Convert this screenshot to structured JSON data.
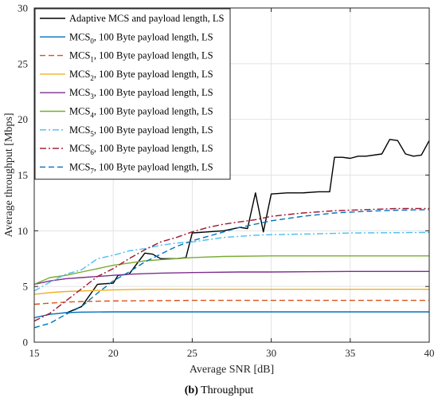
{
  "caption": {
    "letter": "(b)",
    "text": "Throughput"
  },
  "chart_data": {
    "type": "line",
    "xlabel": "Average SNR [dB]",
    "ylabel": "Average throughput [Mbps]",
    "xlim": [
      15,
      40
    ],
    "ylim": [
      0,
      30
    ],
    "xticks": [
      15,
      20,
      25,
      30,
      35,
      40
    ],
    "yticks": [
      0,
      5,
      10,
      15,
      20,
      25,
      30
    ],
    "grid": true,
    "legend_position": "top-left",
    "series": [
      {
        "name": "Adaptive MCS and payload length, LS",
        "base": "Adaptive MCS and payload length, LS",
        "sub": "",
        "rest": "",
        "color": "#000000",
        "dash": "solid",
        "points": [
          [
            17,
            2.6
          ],
          [
            18,
            3.2
          ],
          [
            19,
            5.2
          ],
          [
            20,
            5.3
          ],
          [
            20.3,
            6.0
          ],
          [
            21,
            6.1
          ],
          [
            22,
            8.0
          ],
          [
            22.5,
            7.9
          ],
          [
            23,
            7.5
          ],
          [
            24,
            7.5
          ],
          [
            24.6,
            7.6
          ],
          [
            25,
            9.8
          ],
          [
            26,
            9.9
          ],
          [
            27,
            10.0
          ],
          [
            28,
            10.3
          ],
          [
            28.5,
            10.2
          ],
          [
            29,
            13.4
          ],
          [
            29.5,
            9.9
          ],
          [
            30,
            13.3
          ],
          [
            31,
            13.4
          ],
          [
            32,
            13.4
          ],
          [
            33,
            13.5
          ],
          [
            33.7,
            13.5
          ],
          [
            34,
            16.6
          ],
          [
            34.5,
            16.6
          ],
          [
            35,
            16.5
          ],
          [
            35.5,
            16.7
          ],
          [
            36,
            16.7
          ],
          [
            37,
            16.9
          ],
          [
            37.5,
            18.2
          ],
          [
            38,
            18.1
          ],
          [
            38.5,
            16.9
          ],
          [
            39,
            16.7
          ],
          [
            39.5,
            16.8
          ],
          [
            40,
            18.1
          ]
        ]
      },
      {
        "name": "MCS0, 100 Byte payload length, LS",
        "base": "MCS",
        "sub": "0",
        "rest": ", 100 Byte payload length, LS",
        "color": "#0072BD",
        "dash": "solid",
        "points": [
          [
            15,
            2.2
          ],
          [
            16,
            2.5
          ],
          [
            17,
            2.65
          ],
          [
            18,
            2.7
          ],
          [
            20,
            2.72
          ],
          [
            25,
            2.72
          ],
          [
            30,
            2.72
          ],
          [
            35,
            2.72
          ],
          [
            40,
            2.72
          ]
        ]
      },
      {
        "name": "MCS1, 100 Byte payload length, LS",
        "base": "MCS",
        "sub": "1",
        "rest": ", 100 Byte payload length, LS",
        "color": "#D95319",
        "dash": "dashed",
        "points": [
          [
            15,
            3.4
          ],
          [
            16,
            3.5
          ],
          [
            17,
            3.6
          ],
          [
            18,
            3.65
          ],
          [
            20,
            3.7
          ],
          [
            25,
            3.75
          ],
          [
            30,
            3.75
          ],
          [
            35,
            3.75
          ],
          [
            40,
            3.75
          ]
        ]
      },
      {
        "name": "MCS2, 100 Byte payload length, LS",
        "base": "MCS",
        "sub": "2",
        "rest": ", 100 Byte payload length, LS",
        "color": "#EDB120",
        "dash": "solid",
        "points": [
          [
            15,
            4.3
          ],
          [
            16,
            4.45
          ],
          [
            17,
            4.55
          ],
          [
            18,
            4.6
          ],
          [
            20,
            4.7
          ],
          [
            22,
            4.75
          ],
          [
            25,
            4.75
          ],
          [
            30,
            4.75
          ],
          [
            35,
            4.75
          ],
          [
            40,
            4.75
          ]
        ]
      },
      {
        "name": "MCS3, 100 Byte payload length, LS",
        "base": "MCS",
        "sub": "3",
        "rest": ", 100 Byte payload length, LS",
        "color": "#7E2F8E",
        "dash": "solid",
        "points": [
          [
            15,
            5.2
          ],
          [
            16,
            5.5
          ],
          [
            17,
            5.7
          ],
          [
            18,
            5.8
          ],
          [
            19,
            5.9
          ],
          [
            20,
            6.0
          ],
          [
            21,
            6.1
          ],
          [
            22,
            6.15
          ],
          [
            23,
            6.2
          ],
          [
            25,
            6.25
          ],
          [
            28,
            6.3
          ],
          [
            30,
            6.3
          ],
          [
            35,
            6.35
          ],
          [
            40,
            6.35
          ]
        ]
      },
      {
        "name": "MCS4, 100 Byte payload length, LS",
        "base": "MCS",
        "sub": "4",
        "rest": ", 100 Byte payload length, LS",
        "color": "#77AC30",
        "dash": "solid",
        "points": [
          [
            15,
            5.2
          ],
          [
            16,
            5.8
          ],
          [
            17,
            6.0
          ],
          [
            18,
            6.3
          ],
          [
            19,
            6.6
          ],
          [
            20,
            6.9
          ],
          [
            21,
            7.1
          ],
          [
            22,
            7.3
          ],
          [
            23,
            7.4
          ],
          [
            24,
            7.5
          ],
          [
            25,
            7.6
          ],
          [
            27,
            7.7
          ],
          [
            30,
            7.75
          ],
          [
            35,
            7.75
          ],
          [
            40,
            7.75
          ]
        ]
      },
      {
        "name": "MCS5, 100 Byte payload length, LS",
        "base": "MCS",
        "sub": "5",
        "rest": ", 100 Byte payload length, LS",
        "color": "#4DBEEE",
        "dash": "dashdot",
        "points": [
          [
            15,
            4.6
          ],
          [
            16,
            5.4
          ],
          [
            17,
            6.1
          ],
          [
            18,
            6.5
          ],
          [
            19,
            7.5
          ],
          [
            20,
            7.8
          ],
          [
            21,
            8.2
          ],
          [
            22,
            8.4
          ],
          [
            23,
            8.7
          ],
          [
            24,
            8.9
          ],
          [
            25,
            9.0
          ],
          [
            26,
            9.2
          ],
          [
            27,
            9.4
          ],
          [
            28,
            9.5
          ],
          [
            29,
            9.6
          ],
          [
            30,
            9.65
          ],
          [
            32,
            9.7
          ],
          [
            35,
            9.8
          ],
          [
            40,
            9.85
          ]
        ]
      },
      {
        "name": "MCS6, 100 Byte payload length, LS",
        "base": "MCS",
        "sub": "6",
        "rest": ", 100 Byte payload length, LS",
        "color": "#A2142F",
        "dash": "dashdot",
        "points": [
          [
            15,
            1.9
          ],
          [
            16,
            2.6
          ],
          [
            17,
            3.7
          ],
          [
            18,
            4.8
          ],
          [
            19,
            5.9
          ],
          [
            20,
            6.6
          ],
          [
            21,
            7.5
          ],
          [
            22,
            8.3
          ],
          [
            23,
            9.0
          ],
          [
            24,
            9.4
          ],
          [
            25,
            9.9
          ],
          [
            26,
            10.3
          ],
          [
            27,
            10.6
          ],
          [
            28,
            10.8
          ],
          [
            29,
            11.0
          ],
          [
            30,
            11.3
          ],
          [
            32,
            11.6
          ],
          [
            34,
            11.8
          ],
          [
            36,
            11.9
          ],
          [
            38,
            12.0
          ],
          [
            40,
            12.0
          ]
        ]
      },
      {
        "name": "MCS7, 100 Byte payload length, LS",
        "base": "MCS",
        "sub": "7",
        "rest": ", 100 Byte payload length, LS",
        "color": "#0072BD",
        "dash": "dashed",
        "points": [
          [
            15,
            1.3
          ],
          [
            16,
            1.7
          ],
          [
            17,
            2.5
          ],
          [
            18,
            3.2
          ],
          [
            19,
            4.4
          ],
          [
            20,
            5.5
          ],
          [
            21,
            6.3
          ],
          [
            22,
            7.2
          ],
          [
            23,
            7.9
          ],
          [
            24,
            8.6
          ],
          [
            25,
            9.1
          ],
          [
            26,
            9.5
          ],
          [
            27,
            9.9
          ],
          [
            28,
            10.3
          ],
          [
            29,
            10.6
          ],
          [
            30,
            10.9
          ],
          [
            32,
            11.3
          ],
          [
            34,
            11.6
          ],
          [
            36,
            11.75
          ],
          [
            38,
            11.85
          ],
          [
            40,
            11.9
          ]
        ]
      }
    ]
  }
}
